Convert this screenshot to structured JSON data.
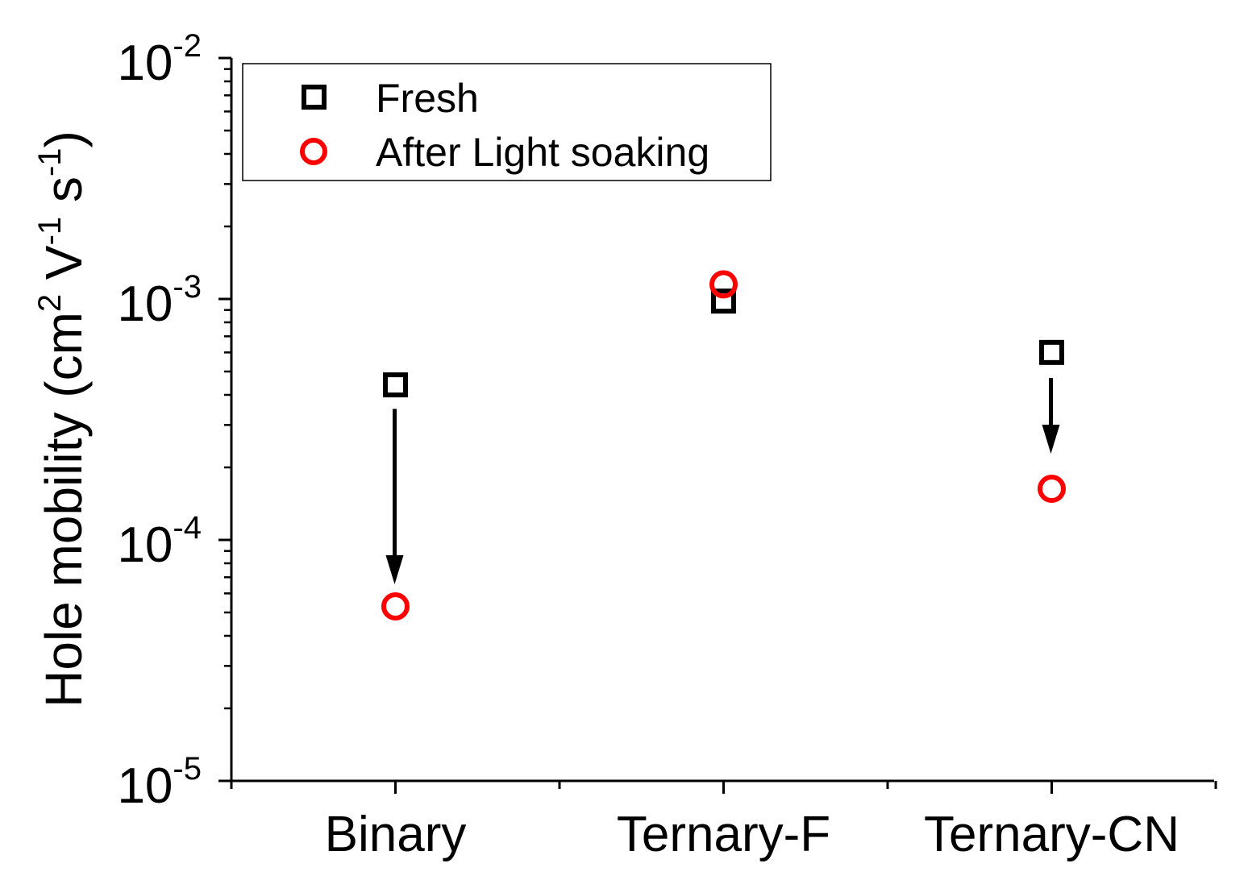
{
  "chart_data": {
    "type": "scatter",
    "title": "",
    "xlabel": "",
    "ylabel": {
      "text": "Hole mobility (cm",
      "sup1": "2",
      "mid1": " V",
      "sup2": "-1",
      "mid2": " s",
      "sup3": "-1",
      "end": ")"
    },
    "yscale": "log",
    "ylim": [
      1e-05,
      0.01
    ],
    "yticks": [
      {
        "base": "10",
        "exp": "-5",
        "value": 1e-05
      },
      {
        "base": "10",
        "exp": "-4",
        "value": 0.0001
      },
      {
        "base": "10",
        "exp": "-3",
        "value": 0.001
      },
      {
        "base": "10",
        "exp": "-2",
        "value": 0.01
      }
    ],
    "categories": [
      "Binary",
      "Ternary-F",
      "Ternary-CN"
    ],
    "series": [
      {
        "name": "Fresh",
        "marker": "open-square",
        "color": "#000000",
        "values": [
          0.00044,
          0.00098,
          0.0006
        ]
      },
      {
        "name": "After Light soaking",
        "marker": "open-circle",
        "color": "#ff0000",
        "values": [
          5.3e-05,
          0.00115,
          0.000163
        ]
      }
    ],
    "annotations": [
      {
        "type": "arrow",
        "category": "Binary",
        "from": 0.00035,
        "to": 6.55e-05
      },
      {
        "type": "arrow",
        "category": "Ternary-CN",
        "from": 0.00047,
        "to": 0.000228
      }
    ],
    "legend": {
      "position": "top-left",
      "frame": true
    }
  }
}
